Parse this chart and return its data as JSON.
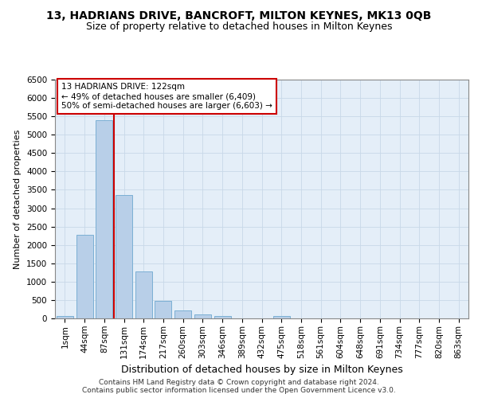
{
  "title_line1": "13, HADRIANS DRIVE, BANCROFT, MILTON KEYNES, MK13 0QB",
  "title_line2": "Size of property relative to detached houses in Milton Keynes",
  "xlabel": "Distribution of detached houses by size in Milton Keynes",
  "ylabel": "Number of detached properties",
  "categories": [
    "1sqm",
    "44sqm",
    "87sqm",
    "131sqm",
    "174sqm",
    "217sqm",
    "260sqm",
    "303sqm",
    "346sqm",
    "389sqm",
    "432sqm",
    "475sqm",
    "518sqm",
    "561sqm",
    "604sqm",
    "648sqm",
    "691sqm",
    "734sqm",
    "777sqm",
    "820sqm",
    "863sqm"
  ],
  "values": [
    70,
    2270,
    5400,
    3360,
    1280,
    475,
    210,
    100,
    55,
    0,
    0,
    65,
    0,
    0,
    0,
    0,
    0,
    0,
    0,
    0,
    0
  ],
  "bar_color": "#b8cfe8",
  "bar_edge_color": "#7bafd4",
  "marker_bar_index": 2,
  "marker_color": "#cc0000",
  "annotation_text": "13 HADRIANS DRIVE: 122sqm\n← 49% of detached houses are smaller (6,409)\n50% of semi-detached houses are larger (6,603) →",
  "annotation_box_facecolor": "#ffffff",
  "annotation_box_edgecolor": "#cc0000",
  "ylim_max": 6500,
  "ytick_step": 500,
  "grid_color": "#c8d8e8",
  "bg_color": "#e4eef8",
  "footer_line1": "Contains HM Land Registry data © Crown copyright and database right 2024.",
  "footer_line2": "Contains public sector information licensed under the Open Government Licence v3.0.",
  "title_fontsize": 10,
  "subtitle_fontsize": 9,
  "xlabel_fontsize": 9,
  "ylabel_fontsize": 8,
  "tick_fontsize": 7.5,
  "annotation_fontsize": 7.5,
  "footer_fontsize": 6.5
}
